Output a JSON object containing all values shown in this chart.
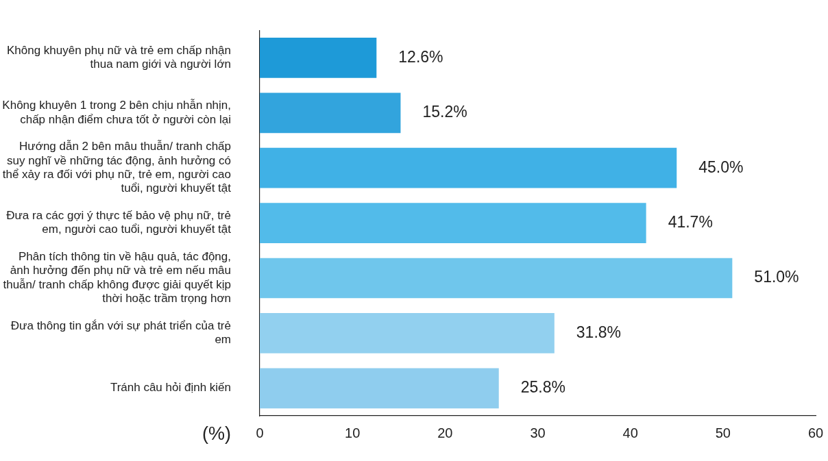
{
  "chart_data": {
    "type": "bar",
    "orientation": "horizontal",
    "xlabel": "(%)",
    "categories": [
      "Không khuyên phụ nữ và trẻ em chấp nhận thua nam giới và người lớn",
      "Không khuyên 1 trong 2 bên chịu nhẫn nhịn, chấp nhận điểm chưa tốt ở người còn lại",
      "Hướng dẫn 2 bên mâu thuẫn/ tranh chấp suy nghĩ về những tác động, ảnh hưởng có thể xảy ra đối với phụ nữ, trẻ em, người cao tuổi, người khuyết tật",
      "Đưa ra các gợi ý thực tế bảo vệ phụ nữ, trẻ em, người cao tuổi, người khuyết tật",
      "Phân tích thông tin về hậu quả, tác động, ảnh hưởng đến phụ nữ và trẻ em nếu mâu thuẫn/ tranh chấp không được giải quyết kịp thời hoặc trầm trọng hơn",
      "Đưa thông tin gắn với sự phát triển của trẻ em",
      "Tránh câu hỏi định kiến"
    ],
    "values": [
      12.6,
      15.2,
      45.0,
      41.7,
      51.0,
      31.8,
      25.8
    ],
    "value_labels": [
      "12.6%",
      "15.2%",
      "45.0%",
      "41.7%",
      "51.0%",
      "31.8%",
      "25.8%"
    ],
    "colors": [
      "#1e9ad8",
      "#32a4dd",
      "#40b1e6",
      "#52bbea",
      "#6fc6ec",
      "#92d0ef",
      "#8fcdee"
    ],
    "xlim": [
      0,
      60
    ],
    "xticks": [
      0,
      10,
      20,
      30,
      40,
      50,
      60
    ],
    "grid": false,
    "legend": false
  }
}
